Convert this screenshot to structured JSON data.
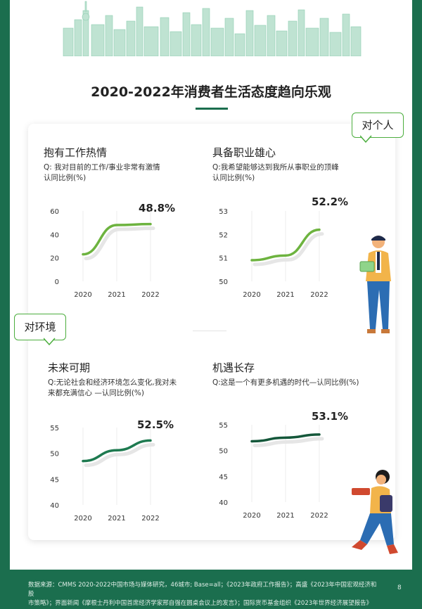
{
  "title": "2020-2022年消费者生活态度趋向乐观",
  "bubbles": {
    "personal": "对个人",
    "environment": "对环境"
  },
  "panels": [
    {
      "title": "抱有工作热情",
      "question": "Q: 我对目前的工作/事业非常有激情",
      "question2": "认同比例(%)",
      "highlight": "48.8%"
    },
    {
      "title": "具备职业雄心",
      "question": "Q:我希望能够达到我所从事职业的顶峰",
      "question2": "认同比例(%)",
      "highlight": "52.2%"
    },
    {
      "title": "未来可期",
      "question": "Q:无论社会和经济环境怎么变化,我对未",
      "question2": "来都充满信心 —认同比例(%)",
      "highlight": "52.5%"
    },
    {
      "title": "机遇长存",
      "question": "Q:这是一个有更多机遇的时代—认同比例(%)",
      "question2": "",
      "highlight": "53.1%"
    }
  ],
  "chart_data": [
    {
      "type": "line",
      "categories": [
        "2020",
        "2021",
        "2022"
      ],
      "yticks": [
        0,
        20,
        40,
        60
      ],
      "ylim": [
        0,
        60
      ],
      "series": [
        {
          "values": [
            23,
            48,
            48.8
          ]
        }
      ],
      "color": "#6db33f"
    },
    {
      "type": "line",
      "categories": [
        "2020",
        "2021",
        "2022"
      ],
      "yticks": [
        50,
        51,
        52,
        53
      ],
      "ylim": [
        50,
        53
      ],
      "series": [
        {
          "values": [
            50.9,
            51.1,
            52.2
          ]
        }
      ],
      "color": "#6db33f"
    },
    {
      "type": "line",
      "categories": [
        "2020",
        "2021",
        "2022"
      ],
      "yticks": [
        40,
        45,
        50,
        55
      ],
      "ylim": [
        40,
        55
      ],
      "series": [
        {
          "values": [
            48.5,
            50.6,
            52.5
          ]
        }
      ],
      "color": "#1e7a50"
    },
    {
      "type": "line",
      "categories": [
        "2020",
        "2021",
        "2022"
      ],
      "yticks": [
        40,
        45,
        50,
        55
      ],
      "ylim": [
        40,
        55
      ],
      "series": [
        {
          "values": [
            51.8,
            52.5,
            53.1
          ]
        }
      ],
      "color": "#14573a"
    }
  ],
  "footer": {
    "line1": "数据来源：CMMS 2020-2022中国市场与媒体研究，46城市; Base=all；《2023年政府工作报告》；高盛《2023年中国宏观经济和股",
    "line2": "市策略》；界面新闻《摩根士丹利中国首席经济学家邢自强在圆桌会议上的发言》；国际货币基金组织《2023年世界经济展望报告》",
    "page": "8"
  }
}
